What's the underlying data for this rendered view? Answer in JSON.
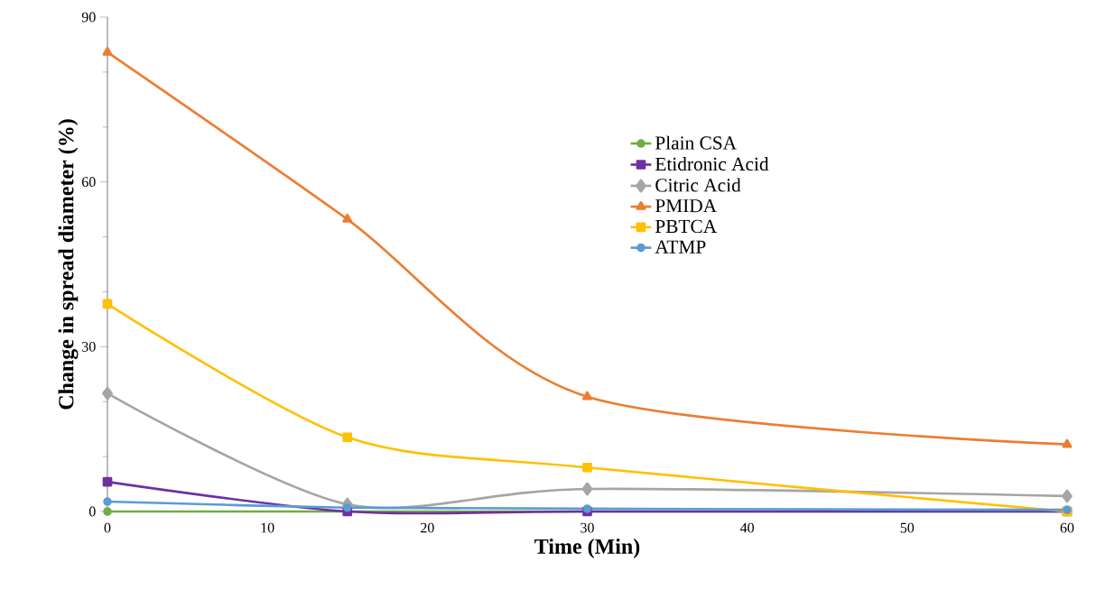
{
  "chart_data": {
    "type": "line",
    "xlabel": "Time (Min)",
    "ylabel": "Change in spread diameter (%)",
    "x": [
      0,
      15,
      30,
      60
    ],
    "xlim": [
      0,
      60
    ],
    "xticks": [
      0,
      10,
      20,
      30,
      40,
      50,
      60
    ],
    "ylim": [
      0,
      90
    ],
    "yticks": [
      0,
      30,
      60,
      90
    ],
    "grid": false,
    "legend": "right",
    "series": [
      {
        "name": "Plain CSA",
        "color": "#70ad47",
        "marker": "circle",
        "values": [
          0,
          0,
          0,
          0
        ]
      },
      {
        "name": "Etidronic Acid",
        "color": "#7030a0",
        "marker": "square",
        "values": [
          5.4,
          0,
          0,
          0
        ]
      },
      {
        "name": "Citric Acid",
        "color": "#a5a5a5",
        "marker": "diamond",
        "values": [
          21.5,
          1.3,
          4.1,
          2.8
        ]
      },
      {
        "name": "PMIDA",
        "color": "#ed7d31",
        "marker": "triangle",
        "values": [
          83.6,
          53.2,
          20.9,
          12.2
        ]
      },
      {
        "name": "PBTCA",
        "color": "#ffc000",
        "marker": "square",
        "values": [
          37.8,
          13.5,
          8.0,
          0
        ]
      },
      {
        "name": "ATMP",
        "color": "#5b9bd5",
        "marker": "circle",
        "values": [
          1.8,
          0.7,
          0.5,
          0.3
        ]
      }
    ]
  }
}
